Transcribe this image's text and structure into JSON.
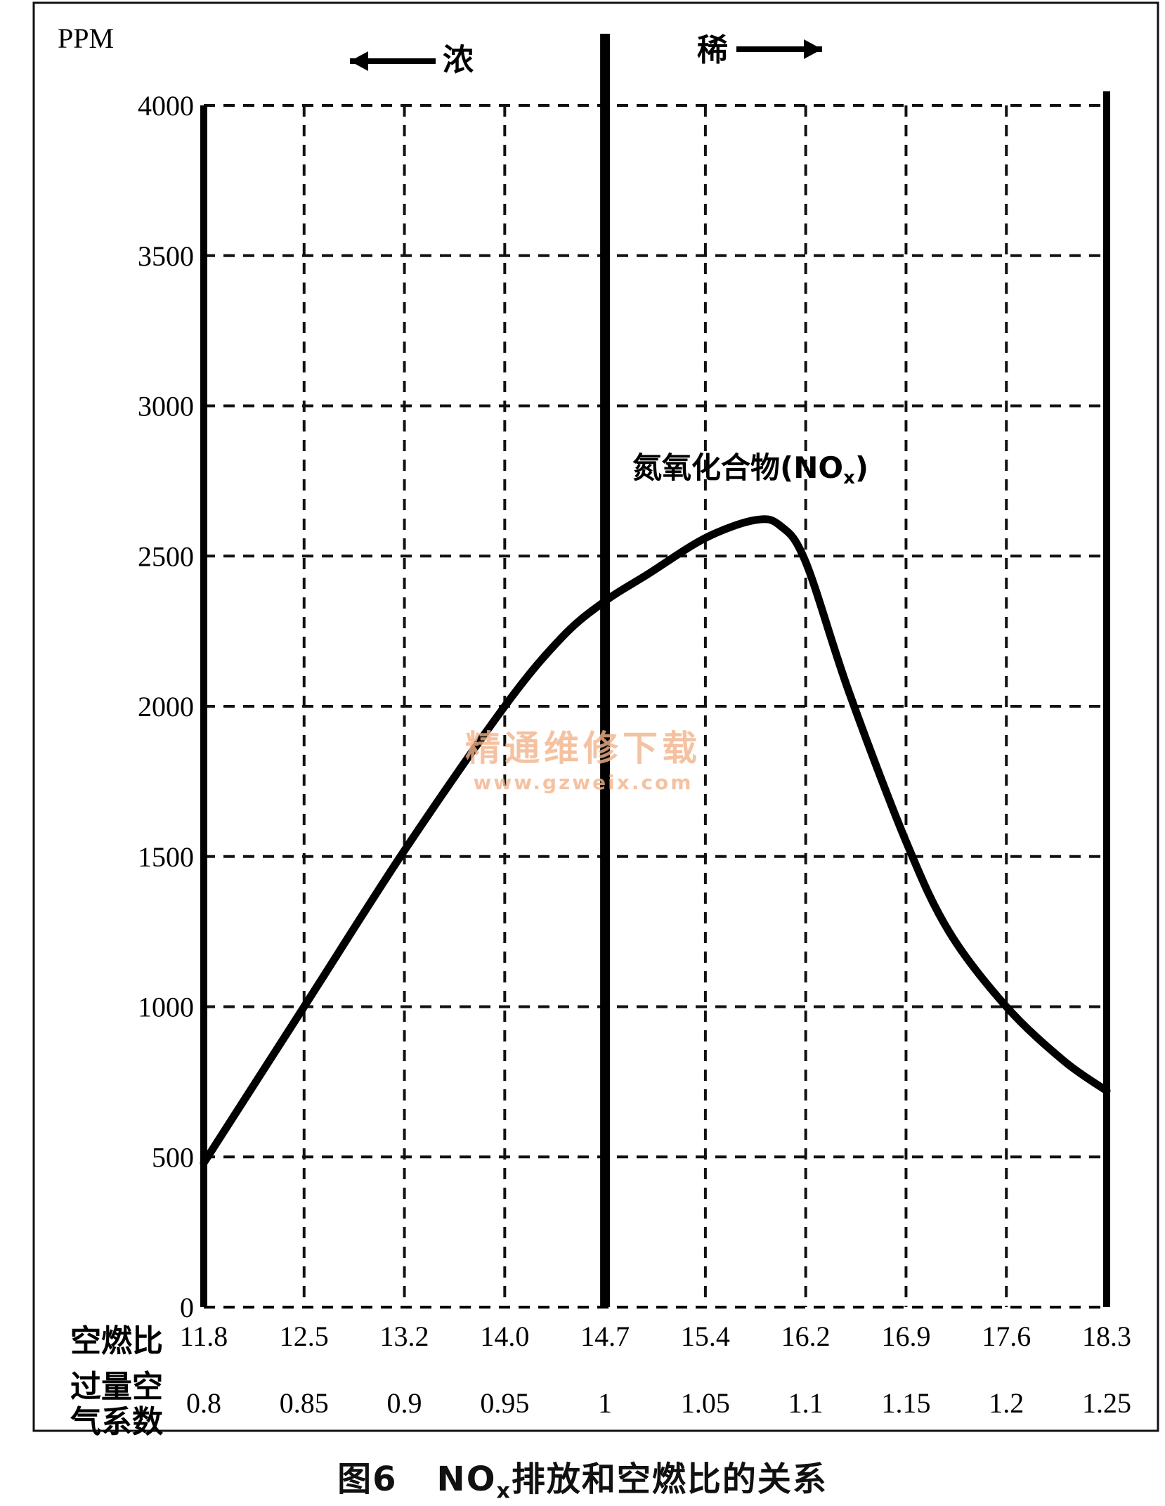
{
  "chart_data": {
    "type": "line",
    "ylabel": "PPM",
    "ylim": [
      0,
      4000
    ],
    "yticks": [
      "4000",
      "3500",
      "3000",
      "2500",
      "2000",
      "1500",
      "1000",
      "500",
      "0"
    ],
    "afr_row_label": "空燃比",
    "lambda_row_label_line1": "过量空",
    "lambda_row_label_line2": "气系数",
    "afr_ticks": [
      "11.8",
      "12.5",
      "13.2",
      "14.0",
      "14.7",
      "15.4",
      "16.2",
      "16.9",
      "17.6",
      "18.3"
    ],
    "lambda_ticks": [
      "0.8",
      "0.85",
      "0.9",
      "0.95",
      "1",
      "1.05",
      "1.1",
      "1.15",
      "1.2",
      "1.25"
    ],
    "rich_label": "浓",
    "lean_label": "稀",
    "divider_at": 14.7,
    "grid": true,
    "series": [
      {
        "name": "氮氧化合物(NO",
        "name_subscript": "x",
        "name_suffix": ")",
        "x": [
          11.8,
          12.5,
          13.2,
          14.0,
          14.4,
          14.7,
          15.0,
          15.4,
          15.8,
          16.0,
          16.2,
          16.5,
          16.9,
          17.2,
          17.6,
          18.0,
          18.3
        ],
        "y": [
          480,
          1000,
          1520,
          2000,
          2230,
          2350,
          2440,
          2560,
          2620,
          2600,
          2480,
          2050,
          1550,
          1250,
          1000,
          820,
          720
        ]
      }
    ]
  },
  "caption": {
    "number": "图6",
    "nox": "NO",
    "nox_sub": "x",
    "text": "排放和空燃比的关系"
  },
  "watermark": {
    "line1": "精通维修下载",
    "line2": "www.gzweix.com"
  }
}
